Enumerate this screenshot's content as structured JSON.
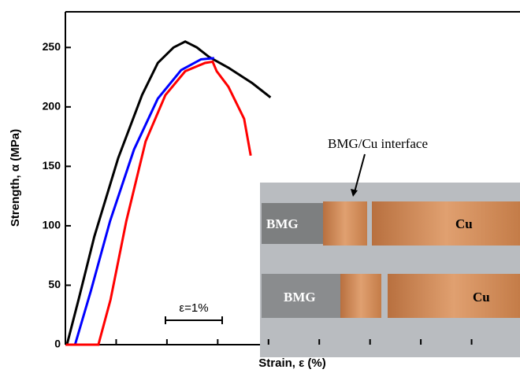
{
  "chart_data": {
    "type": "line",
    "y_label": "Strength, α (MPa)",
    "x_label": "Strain, ε (%)",
    "xlim": [
      0,
      9
    ],
    "xticks": [
      0,
      1,
      2,
      3,
      4,
      5,
      6,
      7,
      8
    ],
    "ylim": [
      0,
      280
    ],
    "yticks": [
      0,
      50,
      100,
      150,
      200,
      250
    ],
    "series": [
      {
        "color": "#000000",
        "x": [
          0.03,
          0.26,
          0.57,
          1.04,
          1.51,
          1.82,
          2.13,
          2.36,
          2.59,
          2.83,
          3.21,
          3.68,
          4.04
        ],
        "values": [
          0,
          38,
          91,
          157,
          210,
          237,
          250,
          255,
          250,
          242,
          233,
          220,
          208
        ]
      },
      {
        "color": "#0000ff",
        "x": [
          0.19,
          0.5,
          0.88,
          1.35,
          1.82,
          2.28,
          2.67,
          2.93
        ],
        "values": [
          0,
          45,
          104,
          164,
          207,
          231,
          240,
          241
        ]
      },
      {
        "color": "#ff0000",
        "x": [
          0,
          0.65,
          0.89,
          1.2,
          1.58,
          1.97,
          2.36,
          2.75,
          2.9,
          2.98,
          3.21,
          3.52,
          3.65
        ],
        "values": [
          0,
          0,
          38,
          104,
          171,
          210,
          230,
          237,
          238,
          230,
          217,
          190,
          159
        ]
      }
    ],
    "scale_bar_label": "ε=1%",
    "inset": {
      "annotation": "BMG/Cu interface",
      "top_left": "BMG",
      "top_right": "Cu",
      "bottom_left": "BMG",
      "bottom_right": "Cu"
    }
  }
}
